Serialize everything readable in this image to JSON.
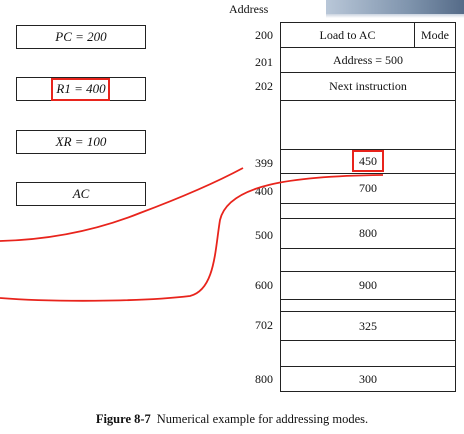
{
  "figure": {
    "address_header": "Address",
    "registers": [
      {
        "id": "pc",
        "text": "PC = 200"
      },
      {
        "id": "r1",
        "text": "R1 = 400"
      },
      {
        "id": "xr",
        "text": "XR = 100"
      },
      {
        "id": "ac",
        "text": "AC"
      }
    ],
    "memory": [
      {
        "address": "200",
        "content": "Load to AC",
        "extra": "Mode"
      },
      {
        "address": "201",
        "content": "Address = 500"
      },
      {
        "address": "202",
        "content": "Next instruction"
      },
      {
        "address": "",
        "content": ""
      },
      {
        "address": "399",
        "content": "450"
      },
      {
        "address": "400",
        "content": "700"
      },
      {
        "address": "",
        "content": ""
      },
      {
        "address": "500",
        "content": "800"
      },
      {
        "address": "",
        "content": ""
      },
      {
        "address": "600",
        "content": "900"
      },
      {
        "address": "",
        "content": ""
      },
      {
        "address": "702",
        "content": "325"
      },
      {
        "address": "",
        "content": ""
      },
      {
        "address": "800",
        "content": "300"
      }
    ],
    "caption_label": "Figure 8-7",
    "caption_text": "Numerical example for addressing modes.",
    "annotation_color": "#e8241c"
  }
}
